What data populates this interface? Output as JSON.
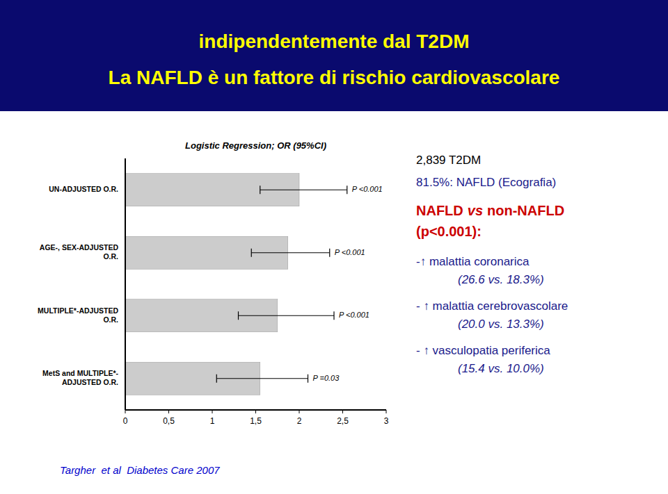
{
  "chart_data": {
    "type": "bar",
    "orientation": "horizontal",
    "title": [
      "indipendentemente dal T2DM",
      "La NAFLD è un fattore di rischio cardiovascolare"
    ],
    "title_color": "#ffff00",
    "title_background": "#0a0a6e",
    "subtitle": "Logistic Regression; OR (95%CI)",
    "categories": [
      "UN-ADJUSTED O.R.",
      "AGE-, SEX-ADJUSTED\nO.R.",
      "MULTIPLE*-ADJUSTED\nO.R.",
      "MetS and MULTIPLE*-\nADJUSTED O.R."
    ],
    "values": [
      2.0,
      1.87,
      1.75,
      1.55
    ],
    "ci_low": [
      1.55,
      1.45,
      1.3,
      1.05
    ],
    "ci_high": [
      2.55,
      2.35,
      2.4,
      2.1
    ],
    "p_values": [
      "P <0.001",
      "P <0.001",
      "P <0.001",
      "P =0.03"
    ],
    "color": "#cccccc",
    "xlim": [
      0,
      3
    ],
    "xticks": [
      0,
      {
        "value": 0.5,
        "label": "0,5"
      },
      1,
      {
        "value": 1.5,
        "label": "1,5"
      },
      2,
      {
        "value": 2.5,
        "label": "2,5"
      },
      3
    ],
    "grid": false,
    "annotations": [
      {
        "text": "2,839 T2DM",
        "color": "#000000"
      },
      {
        "text": "81.5%: NAFLD (Ecografia)",
        "color": "#1a1a8c"
      },
      {
        "parts": [
          "NAFLD",
          "vs",
          "non-NAFLD"
        ],
        "color": "#cc0000"
      },
      {
        "text": "(p<0.001):",
        "color": "#cc0000"
      },
      {
        "text": "-↑ malattia coronarica",
        "color": "#1a1a8c"
      },
      {
        "text": "(26.6 vs. 18.3%)",
        "color": "#1a1a8c"
      },
      {
        "text": "- ↑ malattia cerebrovascolare",
        "color": "#1a1a8c"
      },
      {
        "text": "(20.0 vs. 13.3%)",
        "color": "#1a1a8c"
      },
      {
        "text": "- ↑ vasculopatia periferica",
        "color": "#1a1a8c"
      },
      {
        "text": "(15.4 vs. 10.0%)",
        "color": "#1a1a8c"
      },
      {
        "text": "Targher  et al  Diabetes Care 2007",
        "color": "#0000cc"
      }
    ]
  }
}
